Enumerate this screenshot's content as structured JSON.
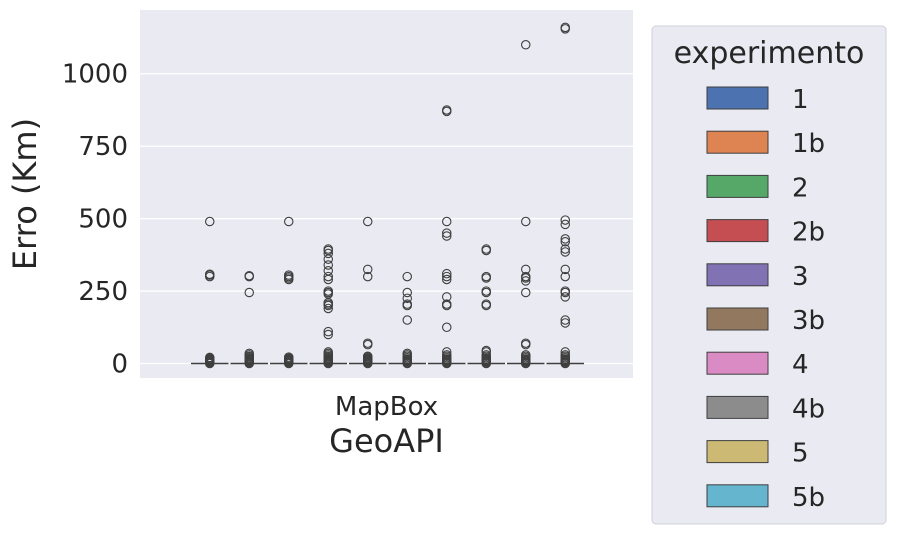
{
  "chart_data": {
    "type": "boxplot",
    "ylabel": "Erro (Km)",
    "xlabel": "GeoAPI",
    "categories": [
      "MapBox"
    ],
    "ylim": [
      -50,
      1220
    ],
    "yticks": [
      0,
      250,
      500,
      750,
      1000
    ],
    "ytick_labels": [
      "0",
      "250",
      "500",
      "750",
      "1000"
    ],
    "grid": true,
    "legend": {
      "title": "experimento",
      "placement": "outside-right"
    },
    "series": [
      {
        "name": "1",
        "color": "#4c72b0",
        "median": 0,
        "outliers": [
          0,
          3,
          6,
          9,
          12,
          15,
          18,
          21,
          300,
          305,
          308,
          490
        ]
      },
      {
        "name": "1b",
        "color": "#dd8452",
        "median": 0,
        "outliers": [
          0,
          3,
          6,
          9,
          12,
          15,
          18,
          22,
          25,
          30,
          35,
          245,
          300,
          303
        ]
      },
      {
        "name": "2",
        "color": "#55a868",
        "median": 0,
        "outliers": [
          0,
          3,
          6,
          9,
          12,
          15,
          18,
          22,
          290,
          295,
          300,
          305,
          490
        ]
      },
      {
        "name": "2b",
        "color": "#c44e52",
        "median": 0,
        "outliers": [
          0,
          3,
          6,
          9,
          12,
          15,
          18,
          22,
          25,
          30,
          35,
          40,
          100,
          110,
          190,
          200,
          205,
          210,
          240,
          245,
          250,
          290,
          300,
          320,
          340,
          360,
          380,
          390,
          395
        ]
      },
      {
        "name": "3",
        "color": "#8172b3",
        "median": 0,
        "outliers": [
          0,
          3,
          6,
          9,
          12,
          15,
          18,
          22,
          25,
          65,
          70,
          300,
          325,
          490
        ]
      },
      {
        "name": "3b",
        "color": "#937860",
        "median": 0,
        "outliers": [
          0,
          3,
          6,
          9,
          12,
          15,
          20,
          25,
          30,
          35,
          150,
          200,
          205,
          225,
          245,
          300
        ]
      },
      {
        "name": "4",
        "color": "#da8bc3",
        "median": 0,
        "outliers": [
          0,
          3,
          6,
          9,
          12,
          15,
          20,
          25,
          30,
          40,
          125,
          200,
          205,
          230,
          290,
          300,
          310,
          440,
          450,
          490,
          870,
          875
        ]
      },
      {
        "name": "4b",
        "color": "#8c8c8c",
        "median": 0,
        "outliers": [
          0,
          3,
          6,
          9,
          12,
          15,
          20,
          25,
          30,
          40,
          45,
          200,
          205,
          245,
          250,
          295,
          300,
          390,
          395
        ]
      },
      {
        "name": "5",
        "color": "#ccb974",
        "median": 0,
        "outliers": [
          0,
          3,
          6,
          9,
          12,
          15,
          20,
          25,
          30,
          65,
          70,
          245,
          285,
          295,
          300,
          325,
          490,
          1100
        ]
      },
      {
        "name": "5b",
        "color": "#64b5cd",
        "median": 0,
        "outliers": [
          0,
          3,
          6,
          9,
          12,
          15,
          20,
          25,
          30,
          40,
          140,
          150,
          230,
          245,
          250,
          300,
          325,
          385,
          395,
          420,
          430,
          480,
          495,
          1155,
          1160
        ]
      }
    ]
  }
}
